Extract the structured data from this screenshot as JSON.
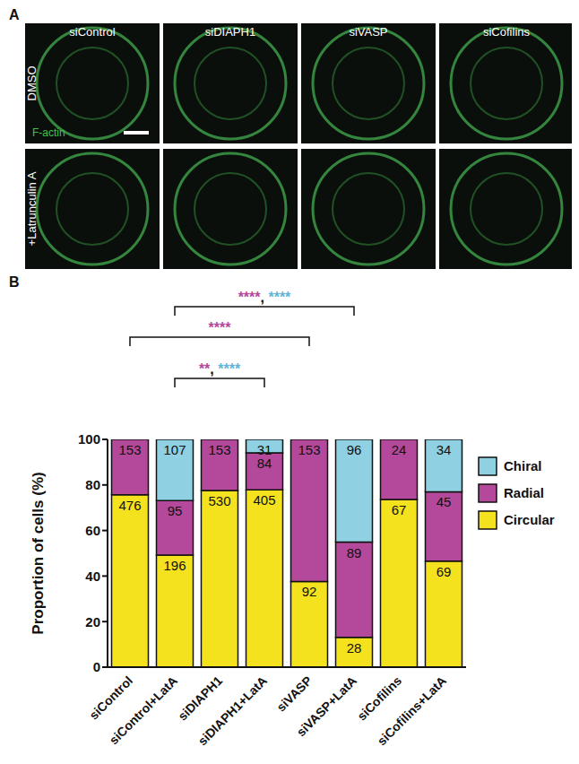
{
  "panel_a": {
    "label": "A",
    "columns": [
      "siControl",
      "siDIAPH1",
      "siVASP",
      "siCofilins"
    ],
    "rows": [
      "DMSO",
      "+Latrunculin A"
    ],
    "stain": "F-actin"
  },
  "panel_b": {
    "label": "B"
  },
  "chart_data": {
    "type": "bar",
    "stacked": true,
    "y_label": "Proportion of cells (%)",
    "categories": [
      "siControl",
      "siControl+LatA",
      "siDIAPH1",
      "siDIAPH1+LatA",
      "siVASP",
      "siVASP+LatA",
      "siCofilins",
      "siCofilins+LatA"
    ],
    "ylim": [
      0,
      100
    ],
    "yticks": [
      0,
      20,
      40,
      60,
      80,
      100
    ],
    "legend": "right",
    "series": [
      {
        "name": "Circular",
        "color": "#f5e21f",
        "values": [
          75.7,
          49.2,
          77.6,
          77.9,
          37.6,
          13.1,
          73.6,
          46.6
        ],
        "counts": [
          476,
          196,
          530,
          405,
          92,
          28,
          67,
          69
        ]
      },
      {
        "name": "Radial",
        "color": "#b4489b",
        "values": [
          24.3,
          23.9,
          22.4,
          16.2,
          62.4,
          41.8,
          26.4,
          30.4
        ],
        "counts": [
          153,
          95,
          153,
          84,
          153,
          89,
          24,
          45
        ]
      },
      {
        "name": "Chiral",
        "color": "#8fd0e2",
        "values": [
          null,
          26.9,
          null,
          5.9,
          null,
          45.1,
          null,
          23.0
        ],
        "counts": [
          null,
          107,
          null,
          31,
          null,
          96,
          null,
          34
        ]
      }
    ],
    "annotations": [
      {
        "from": "siControl+LatA",
        "to": "siVASP+LatA",
        "labels": [
          {
            "text": "****",
            "color": "#b4489b"
          },
          {
            "text": "****",
            "color": "#5fb6d6"
          }
        ],
        "separator": ","
      },
      {
        "from": "siControl",
        "to": "siVASP",
        "labels": [
          {
            "text": "****",
            "color": "#b4489b"
          }
        ]
      },
      {
        "from": "siControl+LatA",
        "to": "siDIAPH1+LatA",
        "labels": [
          {
            "text": "**",
            "color": "#b4489b"
          },
          {
            "text": "****",
            "color": "#5fb6d6"
          }
        ],
        "separator": ","
      }
    ]
  }
}
